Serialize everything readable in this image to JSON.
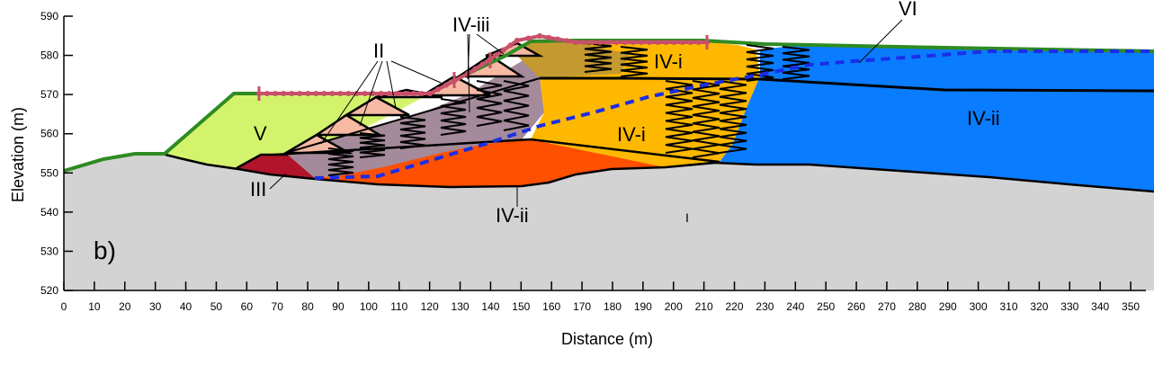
{
  "chart_data": {
    "type": "diagram",
    "panel_label": "b)",
    "xlabel": "Distance (m)",
    "ylabel": "Elevation (m)",
    "xlim": [
      0,
      355
    ],
    "ylim": [
      520,
      590
    ],
    "x_ticks": [
      0,
      10,
      20,
      30,
      40,
      50,
      60,
      70,
      80,
      90,
      100,
      110,
      120,
      130,
      140,
      150,
      160,
      170,
      180,
      190,
      200,
      210,
      220,
      230,
      240,
      250,
      260,
      270,
      280,
      290,
      300,
      310,
      320,
      330,
      340,
      350
    ],
    "y_ticks": [
      520,
      530,
      540,
      550,
      560,
      570,
      580,
      590
    ],
    "zone_labels": {
      "V": "V",
      "II": "II",
      "III": "III",
      "IV_iii": "IV-iii",
      "IV_i_upper": "IV-i",
      "IV_i_mid": "IV-i",
      "IV_ii_lower": "IV-ii",
      "IV_ii_right": "IV-ii",
      "VI": "VI",
      "I": "I"
    },
    "colors": {
      "bedrock": "#d3d3d3",
      "zone_v": "#d4f36c",
      "zone_iii": "#b0152c",
      "zone_ii": "#f6b9a4",
      "zone_iv_iii": "#a48a9a",
      "zone_iv_i": "#ffb800",
      "zone_iv_ii_lower": "#ff5000",
      "zone_iv_ii_right": "#0a7cff",
      "zone_top_brown": "#c49a30",
      "surface": "#2e8b22",
      "phreatic": "#1a2ee8",
      "cover": "#c8506a"
    }
  }
}
